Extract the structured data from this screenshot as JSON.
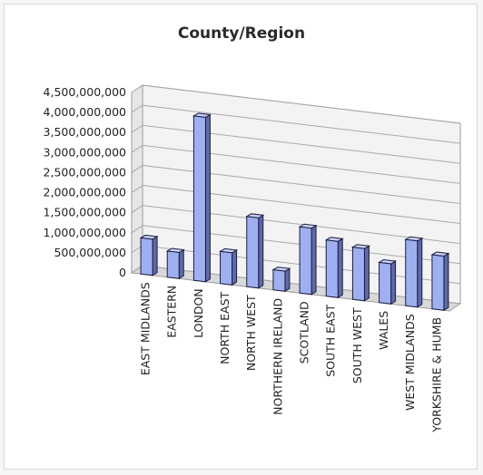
{
  "chart_data": {
    "type": "bar",
    "title": "County/Region",
    "xlabel": "",
    "ylabel": "",
    "categories": [
      "EAST MIDLANDS",
      "EASTERN",
      "LONDON",
      "NORTH EAST",
      "NORTH WEST",
      "NORTHERN IRELAND",
      "SCOTLAND",
      "SOUTH EAST",
      "SOUTH WEST",
      "WALES",
      "WEST MIDLANDS",
      "YORKSHIRE & HUMB"
    ],
    "values": [
      900000000,
      650000000,
      4100000000,
      800000000,
      1750000000,
      500000000,
      1650000000,
      1400000000,
      1300000000,
      1000000000,
      1650000000,
      1350000000
    ],
    "ylim": [
      0,
      4500000000
    ],
    "y_ticks": [
      {
        "value": 0,
        "label": "0"
      },
      {
        "value": 500000000,
        "label": "500,000,000"
      },
      {
        "value": 1000000000,
        "label": "1,000,000,000"
      },
      {
        "value": 1500000000,
        "label": "1,500,000,000"
      },
      {
        "value": 2000000000,
        "label": "2,000,000,000"
      },
      {
        "value": 2500000000,
        "label": "2,500,000,000"
      },
      {
        "value": 3000000000,
        "label": "3,000,000,000"
      },
      {
        "value": 3500000000,
        "label": "3,500,000,000"
      },
      {
        "value": 4000000000,
        "label": "4,000,000,000"
      },
      {
        "value": 4500000000,
        "label": "4,500,000,000"
      }
    ],
    "grid": true,
    "style": "3d-column",
    "colors": {
      "bar_front": "#9fb0f2",
      "bar_side": "#5d6aa8",
      "bar_top": "#c5d0fa",
      "bar_outline": "#1c1c3c",
      "grid": "#aaaaaa",
      "wall": "#f3f3f3"
    }
  }
}
